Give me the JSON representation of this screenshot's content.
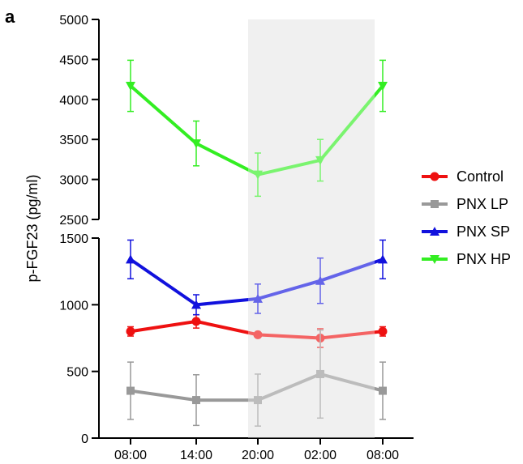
{
  "panel_label": "a",
  "chart_data": {
    "type": "line",
    "ylabel": "p-FGF23 (pg/ml)",
    "xlabel": "",
    "categories": [
      "08:00",
      "14:00",
      "20:00",
      "02:00",
      "08:00"
    ],
    "y_axis_break": {
      "lower_segment": {
        "range": [
          0,
          1500
        ],
        "ticks": [
          0,
          500,
          1000,
          1500
        ]
      },
      "upper_segment": {
        "range": [
          2500,
          5000
        ],
        "ticks": [
          2500,
          3000,
          3500,
          4000,
          4500,
          5000
        ]
      }
    },
    "shaded_region": {
      "from_category": "20:00",
      "to_category": "02:00",
      "color": "#e8e8e8"
    },
    "series": [
      {
        "name": "Control",
        "color": "#ee1111",
        "marker": "circle",
        "values": [
          800,
          875,
          775,
          750,
          800
        ],
        "errors": [
          35,
          50,
          15,
          70,
          35
        ]
      },
      {
        "name": "PNX LP",
        "color": "#999999",
        "marker": "square",
        "values": [
          355,
          285,
          285,
          480,
          355
        ],
        "errors": [
          215,
          190,
          195,
          330,
          215
        ]
      },
      {
        "name": "PNX SP",
        "color": "#1111dd",
        "marker": "triangle-up",
        "values": [
          1340,
          1000,
          1045,
          1180,
          1340
        ],
        "errors": [
          145,
          75,
          110,
          170,
          145
        ]
      },
      {
        "name": "PNX HP",
        "color": "#33ee22",
        "marker": "triangle-down",
        "values": [
          4170,
          3450,
          3060,
          3240,
          4170
        ],
        "errors": [
          320,
          280,
          270,
          260,
          320
        ]
      }
    ],
    "legend_position": "right",
    "grid": false
  }
}
